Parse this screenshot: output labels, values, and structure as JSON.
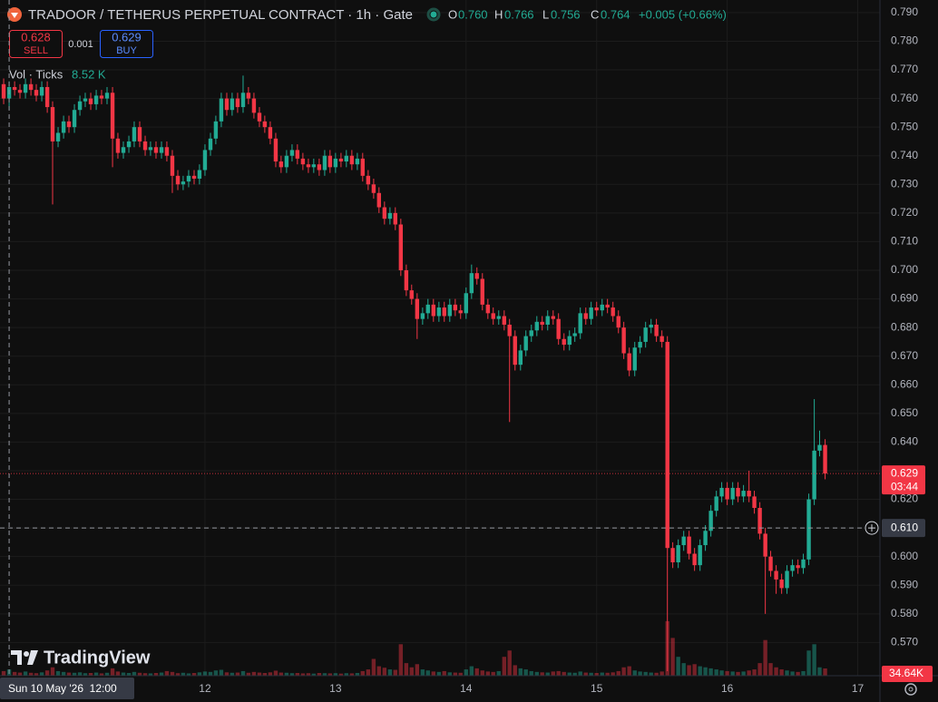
{
  "chart_data": {
    "type": "candlestick",
    "title": "TRADOOR / TETHERUS PERPETUAL CONTRACT · 1h · Gate",
    "ohlc": {
      "keys": [
        "O",
        "H",
        "L",
        "C"
      ],
      "values": [
        "0.760",
        "0.766",
        "0.756",
        "0.764"
      ],
      "change": "+0.005 (+0.66%)"
    },
    "trade": {
      "sell_price": "0.628",
      "sell": "SELL",
      "spread": "0.001",
      "buy_price": "0.629",
      "buy": "BUY"
    },
    "volume_legend": {
      "label": "Vol · Ticks",
      "value": "8.52 K"
    },
    "watermark": "TradingView",
    "up_color": "#22ab94",
    "down_color": "#f23645",
    "xlim": [
      10.43,
      17.17
    ],
    "xticks": [
      12,
      13,
      14,
      15,
      16,
      17
    ],
    "ylim": [
      0.5584,
      0.7944
    ],
    "yticks": [
      {
        "value": 0.79,
        "label": "0.790"
      },
      {
        "value": 0.78,
        "label": "0.780"
      },
      {
        "value": 0.77,
        "label": "0.770"
      },
      {
        "value": 0.76,
        "label": "0.760"
      },
      {
        "value": 0.75,
        "label": "0.750"
      },
      {
        "value": 0.74,
        "label": "0.740"
      },
      {
        "value": 0.73,
        "label": "0.730"
      },
      {
        "value": 0.72,
        "label": "0.720"
      },
      {
        "value": 0.71,
        "label": "0.710"
      },
      {
        "value": 0.7,
        "label": "0.700"
      },
      {
        "value": 0.69,
        "label": "0.690"
      },
      {
        "value": 0.68,
        "label": "0.680"
      },
      {
        "value": 0.67,
        "label": "0.670"
      },
      {
        "value": 0.66,
        "label": "0.660"
      },
      {
        "value": 0.65,
        "label": "0.650"
      },
      {
        "value": 0.64,
        "label": "0.640"
      },
      {
        "value": 0.63,
        "label": "0.630"
      },
      {
        "value": 0.62,
        "label": "0.620"
      },
      {
        "value": 0.61,
        "label": "0.610"
      },
      {
        "value": 0.6,
        "label": "0.600"
      },
      {
        "value": 0.59,
        "label": "0.590"
      },
      {
        "value": 0.58,
        "label": "0.580"
      },
      {
        "value": 0.57,
        "label": "0.570"
      }
    ],
    "grid": true,
    "last_price": {
      "value": 0.629,
      "label": "0.629",
      "countdown": "03:44"
    },
    "crosshair": {
      "x": {
        "value": 10.5,
        "label": "Sun 10 May '26  12:00"
      },
      "y": {
        "value": 0.61,
        "label": "0.610"
      }
    },
    "volume_last_label": "34.64K",
    "vlim": [
      0,
      800000
    ],
    "x": [
      10.458,
      10.5,
      10.542,
      10.583,
      10.625,
      10.667,
      10.708,
      10.75,
      10.792,
      10.833,
      10.875,
      10.917,
      10.958,
      11,
      11.042,
      11.083,
      11.125,
      11.167,
      11.208,
      11.25,
      11.292,
      11.333,
      11.375,
      11.417,
      11.458,
      11.5,
      11.542,
      11.583,
      11.625,
      11.667,
      11.708,
      11.75,
      11.792,
      11.833,
      11.875,
      11.917,
      11.958,
      12,
      12.042,
      12.083,
      12.125,
      12.167,
      12.208,
      12.25,
      12.292,
      12.333,
      12.375,
      12.417,
      12.458,
      12.5,
      12.542,
      12.583,
      12.625,
      12.667,
      12.708,
      12.75,
      12.792,
      12.833,
      12.875,
      12.917,
      12.958,
      13,
      13.042,
      13.083,
      13.125,
      13.167,
      13.208,
      13.25,
      13.292,
      13.333,
      13.375,
      13.417,
      13.458,
      13.5,
      13.542,
      13.583,
      13.625,
      13.667,
      13.708,
      13.75,
      13.792,
      13.833,
      13.875,
      13.917,
      13.958,
      14,
      14.042,
      14.083,
      14.125,
      14.167,
      14.208,
      14.25,
      14.292,
      14.333,
      14.375,
      14.417,
      14.458,
      14.5,
      14.542,
      14.583,
      14.625,
      14.667,
      14.708,
      14.75,
      14.792,
      14.833,
      14.875,
      14.917,
      14.958,
      15,
      15.042,
      15.083,
      15.125,
      15.167,
      15.208,
      15.25,
      15.292,
      15.333,
      15.375,
      15.417,
      15.458,
      15.5,
      15.542,
      15.583,
      15.625,
      15.667,
      15.708,
      15.75,
      15.792,
      15.833,
      15.875,
      15.917,
      15.958,
      16,
      16.042,
      16.083,
      16.125,
      16.167,
      16.208,
      16.25,
      16.292,
      16.333,
      16.375,
      16.417,
      16.458,
      16.5,
      16.542,
      16.583,
      16.625,
      16.667,
      16.708,
      16.75
    ],
    "open": [
      0.765,
      0.76,
      0.764,
      0.763,
      0.762,
      0.765,
      0.763,
      0.761,
      0.764,
      0.757,
      0.745,
      0.748,
      0.752,
      0.75,
      0.756,
      0.759,
      0.76,
      0.758,
      0.761,
      0.76,
      0.762,
      0.746,
      0.741,
      0.743,
      0.745,
      0.75,
      0.745,
      0.742,
      0.743,
      0.741,
      0.743,
      0.74,
      0.733,
      0.73,
      0.731,
      0.733,
      0.732,
      0.735,
      0.742,
      0.746,
      0.752,
      0.76,
      0.756,
      0.76,
      0.757,
      0.762,
      0.76,
      0.755,
      0.752,
      0.75,
      0.746,
      0.738,
      0.736,
      0.74,
      0.742,
      0.739,
      0.737,
      0.736,
      0.737,
      0.735,
      0.74,
      0.736,
      0.739,
      0.738,
      0.74,
      0.737,
      0.739,
      0.733,
      0.73,
      0.727,
      0.722,
      0.718,
      0.72,
      0.716,
      0.7,
      0.693,
      0.69,
      0.683,
      0.685,
      0.688,
      0.684,
      0.687,
      0.684,
      0.688,
      0.686,
      0.685,
      0.692,
      0.699,
      0.697,
      0.688,
      0.685,
      0.683,
      0.684,
      0.681,
      0.677,
      0.667,
      0.672,
      0.677,
      0.679,
      0.682,
      0.681,
      0.684,
      0.683,
      0.676,
      0.674,
      0.677,
      0.678,
      0.685,
      0.683,
      0.687,
      0.686,
      0.688,
      0.687,
      0.684,
      0.68,
      0.671,
      0.665,
      0.673,
      0.675,
      0.68,
      0.681,
      0.677,
      0.675,
      0.603,
      0.598,
      0.604,
      0.607,
      0.601,
      0.597,
      0.604,
      0.609,
      0.616,
      0.621,
      0.624,
      0.62,
      0.624,
      0.621,
      0.623,
      0.621,
      0.617,
      0.608,
      0.6,
      0.595,
      0.592,
      0.589,
      0.595,
      0.597,
      0.596,
      0.599,
      0.62,
      0.637,
      0.639
    ],
    "high": [
      0.767,
      0.766,
      0.766,
      0.765,
      0.767,
      0.767,
      0.765,
      0.766,
      0.766,
      0.759,
      0.75,
      0.754,
      0.754,
      0.758,
      0.761,
      0.762,
      0.762,
      0.763,
      0.763,
      0.764,
      0.764,
      0.748,
      0.745,
      0.747,
      0.752,
      0.752,
      0.747,
      0.745,
      0.745,
      0.745,
      0.745,
      0.742,
      0.735,
      0.733,
      0.735,
      0.735,
      0.737,
      0.744,
      0.748,
      0.754,
      0.762,
      0.762,
      0.762,
      0.762,
      0.768,
      0.764,
      0.762,
      0.757,
      0.754,
      0.752,
      0.748,
      0.74,
      0.742,
      0.744,
      0.744,
      0.741,
      0.739,
      0.739,
      0.739,
      0.742,
      0.742,
      0.741,
      0.741,
      0.742,
      0.742,
      0.741,
      0.741,
      0.735,
      0.732,
      0.729,
      0.724,
      0.722,
      0.722,
      0.718,
      0.702,
      0.695,
      0.692,
      0.687,
      0.69,
      0.69,
      0.689,
      0.689,
      0.69,
      0.69,
      0.688,
      0.694,
      0.702,
      0.701,
      0.699,
      0.69,
      0.687,
      0.686,
      0.686,
      0.683,
      0.679,
      0.674,
      0.679,
      0.681,
      0.684,
      0.684,
      0.686,
      0.686,
      0.685,
      0.678,
      0.679,
      0.68,
      0.687,
      0.687,
      0.689,
      0.689,
      0.69,
      0.69,
      0.689,
      0.686,
      0.682,
      0.673,
      0.675,
      0.677,
      0.682,
      0.683,
      0.683,
      0.679,
      0.677,
      0.605,
      0.606,
      0.609,
      0.609,
      0.603,
      0.606,
      0.611,
      0.618,
      0.623,
      0.626,
      0.626,
      0.626,
      0.626,
      0.625,
      0.63,
      0.623,
      0.619,
      0.61,
      0.602,
      0.597,
      0.594,
      0.597,
      0.599,
      0.599,
      0.601,
      0.622,
      0.655,
      0.644,
      0.641
    ],
    "low": [
      0.758,
      0.756,
      0.761,
      0.76,
      0.76,
      0.761,
      0.759,
      0.759,
      0.755,
      0.723,
      0.743,
      0.746,
      0.748,
      0.748,
      0.754,
      0.757,
      0.756,
      0.756,
      0.758,
      0.758,
      0.736,
      0.739,
      0.739,
      0.741,
      0.743,
      0.743,
      0.74,
      0.74,
      0.739,
      0.739,
      0.738,
      0.727,
      0.728,
      0.728,
      0.729,
      0.73,
      0.73,
      0.733,
      0.74,
      0.744,
      0.75,
      0.754,
      0.754,
      0.755,
      0.755,
      0.758,
      0.753,
      0.75,
      0.748,
      0.744,
      0.736,
      0.734,
      0.734,
      0.738,
      0.737,
      0.735,
      0.734,
      0.734,
      0.733,
      0.733,
      0.734,
      0.734,
      0.736,
      0.736,
      0.735,
      0.735,
      0.731,
      0.728,
      0.725,
      0.72,
      0.716,
      0.716,
      0.714,
      0.698,
      0.691,
      0.688,
      0.676,
      0.681,
      0.683,
      0.682,
      0.682,
      0.682,
      0.682,
      0.684,
      0.683,
      0.683,
      0.69,
      0.695,
      0.686,
      0.683,
      0.681,
      0.681,
      0.679,
      0.647,
      0.665,
      0.665,
      0.67,
      0.675,
      0.677,
      0.679,
      0.679,
      0.681,
      0.674,
      0.672,
      0.672,
      0.675,
      0.676,
      0.681,
      0.681,
      0.684,
      0.684,
      0.685,
      0.682,
      0.678,
      0.669,
      0.663,
      0.663,
      0.671,
      0.673,
      0.678,
      0.675,
      0.673,
      0.56,
      0.596,
      0.596,
      0.602,
      0.599,
      0.595,
      0.595,
      0.602,
      0.607,
      0.614,
      0.619,
      0.618,
      0.618,
      0.619,
      0.619,
      0.619,
      0.615,
      0.606,
      0.58,
      0.593,
      0.587,
      0.587,
      0.587,
      0.593,
      0.594,
      0.594,
      0.597,
      0.618,
      0.635,
      0.627
    ],
    "close": [
      0.76,
      0.764,
      0.763,
      0.762,
      0.765,
      0.763,
      0.761,
      0.764,
      0.757,
      0.745,
      0.748,
      0.752,
      0.75,
      0.756,
      0.759,
      0.76,
      0.758,
      0.761,
      0.76,
      0.762,
      0.746,
      0.741,
      0.743,
      0.745,
      0.75,
      0.745,
      0.742,
      0.743,
      0.741,
      0.743,
      0.74,
      0.733,
      0.73,
      0.731,
      0.733,
      0.732,
      0.735,
      0.742,
      0.746,
      0.752,
      0.76,
      0.756,
      0.76,
      0.757,
      0.762,
      0.76,
      0.755,
      0.752,
      0.75,
      0.746,
      0.738,
      0.736,
      0.74,
      0.742,
      0.739,
      0.737,
      0.736,
      0.737,
      0.735,
      0.74,
      0.736,
      0.739,
      0.738,
      0.74,
      0.737,
      0.739,
      0.733,
      0.73,
      0.727,
      0.722,
      0.718,
      0.72,
      0.716,
      0.7,
      0.693,
      0.69,
      0.683,
      0.685,
      0.688,
      0.684,
      0.687,
      0.684,
      0.688,
      0.686,
      0.685,
      0.692,
      0.699,
      0.697,
      0.688,
      0.685,
      0.683,
      0.684,
      0.681,
      0.677,
      0.667,
      0.672,
      0.677,
      0.679,
      0.682,
      0.681,
      0.684,
      0.683,
      0.676,
      0.674,
      0.677,
      0.678,
      0.685,
      0.683,
      0.687,
      0.686,
      0.688,
      0.687,
      0.684,
      0.68,
      0.671,
      0.665,
      0.673,
      0.675,
      0.68,
      0.681,
      0.677,
      0.675,
      0.603,
      0.598,
      0.604,
      0.607,
      0.601,
      0.597,
      0.604,
      0.609,
      0.616,
      0.621,
      0.624,
      0.62,
      0.624,
      0.621,
      0.623,
      0.621,
      0.617,
      0.608,
      0.6,
      0.595,
      0.592,
      0.589,
      0.595,
      0.597,
      0.596,
      0.599,
      0.62,
      0.637,
      0.639,
      0.629
    ],
    "volume": [
      22000,
      30000,
      18000,
      15000,
      20000,
      14000,
      12000,
      16000,
      25000,
      40000,
      22000,
      18000,
      15000,
      14000,
      16000,
      12000,
      13000,
      15000,
      11000,
      14000,
      35000,
      20000,
      15000,
      13000,
      18000,
      14000,
      12000,
      11000,
      13000,
      15000,
      22000,
      18000,
      12000,
      14000,
      11000,
      13000,
      16000,
      20000,
      18000,
      25000,
      28000,
      16000,
      14000,
      15000,
      22000,
      14000,
      18000,
      15000,
      13000,
      16000,
      24000,
      15000,
      14000,
      12000,
      13000,
      11000,
      12000,
      10000,
      13000,
      12000,
      11000,
      12000,
      10000,
      12000,
      11000,
      13000,
      22000,
      30000,
      80000,
      45000,
      38000,
      30000,
      28000,
      150000,
      60000,
      40000,
      55000,
      30000,
      25000,
      20000,
      18000,
      22000,
      16000,
      15000,
      14000,
      30000,
      45000,
      35000,
      25000,
      20000,
      18000,
      22000,
      90000,
      120000,
      50000,
      35000,
      30000,
      22000,
      18000,
      16000,
      15000,
      20000,
      22000,
      18000,
      15000,
      14000,
      20000,
      15000,
      14000,
      13000,
      15000,
      14000,
      16000,
      22000,
      40000,
      45000,
      25000,
      20000,
      18000,
      15000,
      14000,
      20000,
      260000,
      180000,
      90000,
      60000,
      50000,
      55000,
      45000,
      40000,
      35000,
      30000,
      25000,
      22000,
      20000,
      18000,
      20000,
      25000,
      30000,
      60000,
      170000,
      60000,
      40000,
      30000,
      25000,
      20000,
      18000,
      22000,
      120000,
      150000,
      40000,
      34640
    ]
  }
}
